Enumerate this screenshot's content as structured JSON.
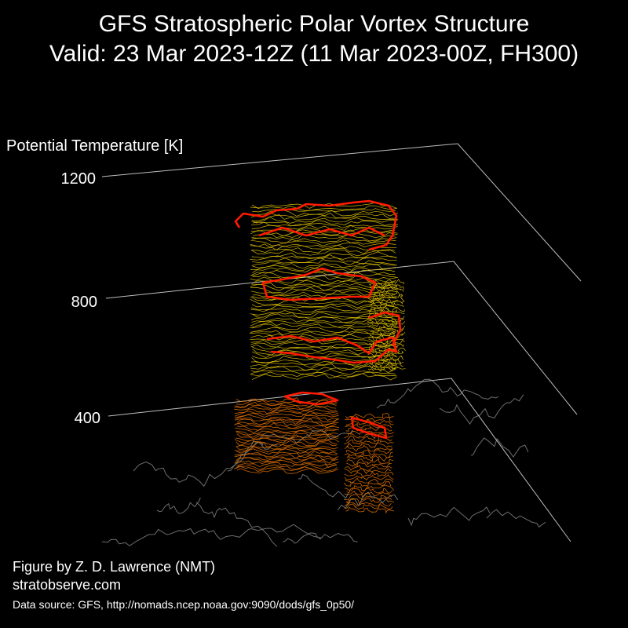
{
  "header": {
    "title": "GFS Stratospheric Polar Vortex Structure",
    "subtitle": "Valid: 23 Mar 2023-12Z  (11 Mar 2023-00Z, FH300)"
  },
  "footer": {
    "credit_line1": "Figure by Z. D. Lawrence (NMT)",
    "credit_line2": "stratobserve.com",
    "source": "Data source: GFS, http://nomads.ncep.noaa.gov:9090/dods/gfs_0p50/"
  },
  "chart_data": {
    "type": "3d-isosurface",
    "zlabel": "Potential Temperature [K]",
    "z_ticks": [
      "1200",
      "800",
      "400"
    ],
    "z_tick_values": [
      1200,
      800,
      400
    ],
    "colors": {
      "upper_contours": "#e8c800",
      "lower_contours": "#e07000",
      "vortex_edge": "#ff1a00",
      "coastlines": "#6e6e6e",
      "axes": "#bdbdbd"
    }
  }
}
